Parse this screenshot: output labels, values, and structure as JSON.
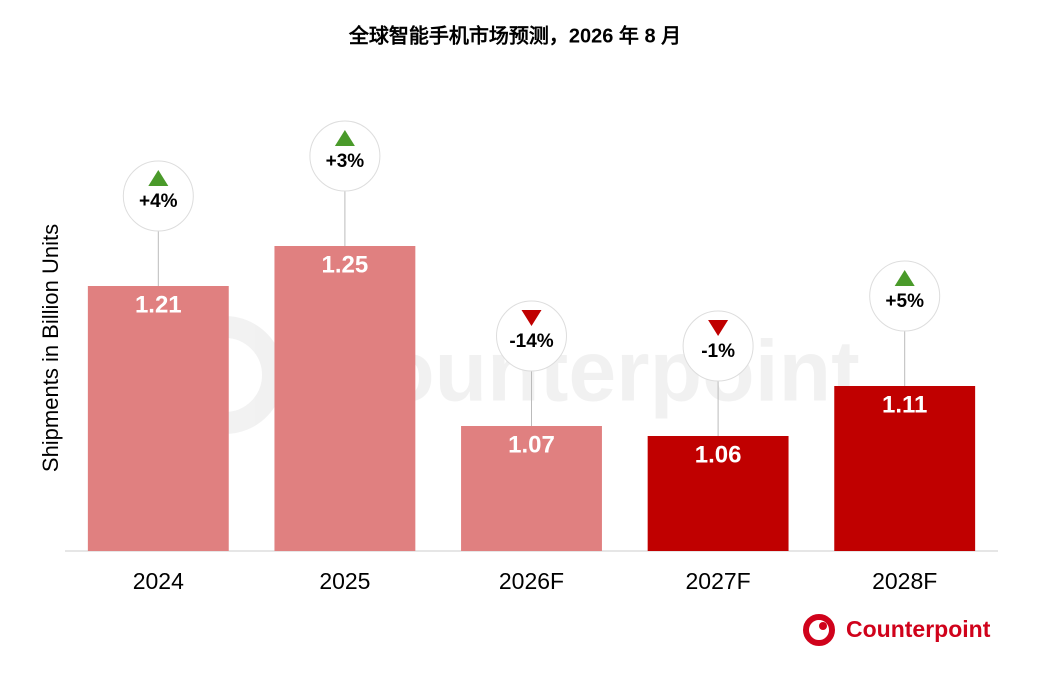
{
  "chart_data": {
    "type": "bar",
    "title": "全球智能手机市场预测，2026 年 8 月",
    "y_label": "Shipments in Billion Units",
    "categories": [
      "2024",
      "2025",
      "2026F",
      "2027F",
      "2028F"
    ],
    "values": [
      1.21,
      1.25,
      1.07,
      1.06,
      1.11
    ],
    "colors": [
      "#e08080",
      "#e08080",
      "#e08080",
      "#c00000",
      "#c00000"
    ],
    "growth": [
      4,
      3,
      -14,
      -1,
      5
    ],
    "growth_labels": [
      "+4%",
      "+3%",
      "-14%",
      "-1%",
      "+5%"
    ],
    "ylim": [
      0.945,
      1.4
    ],
    "watermark": "Counterpoint",
    "logo": "Counterpoint"
  }
}
